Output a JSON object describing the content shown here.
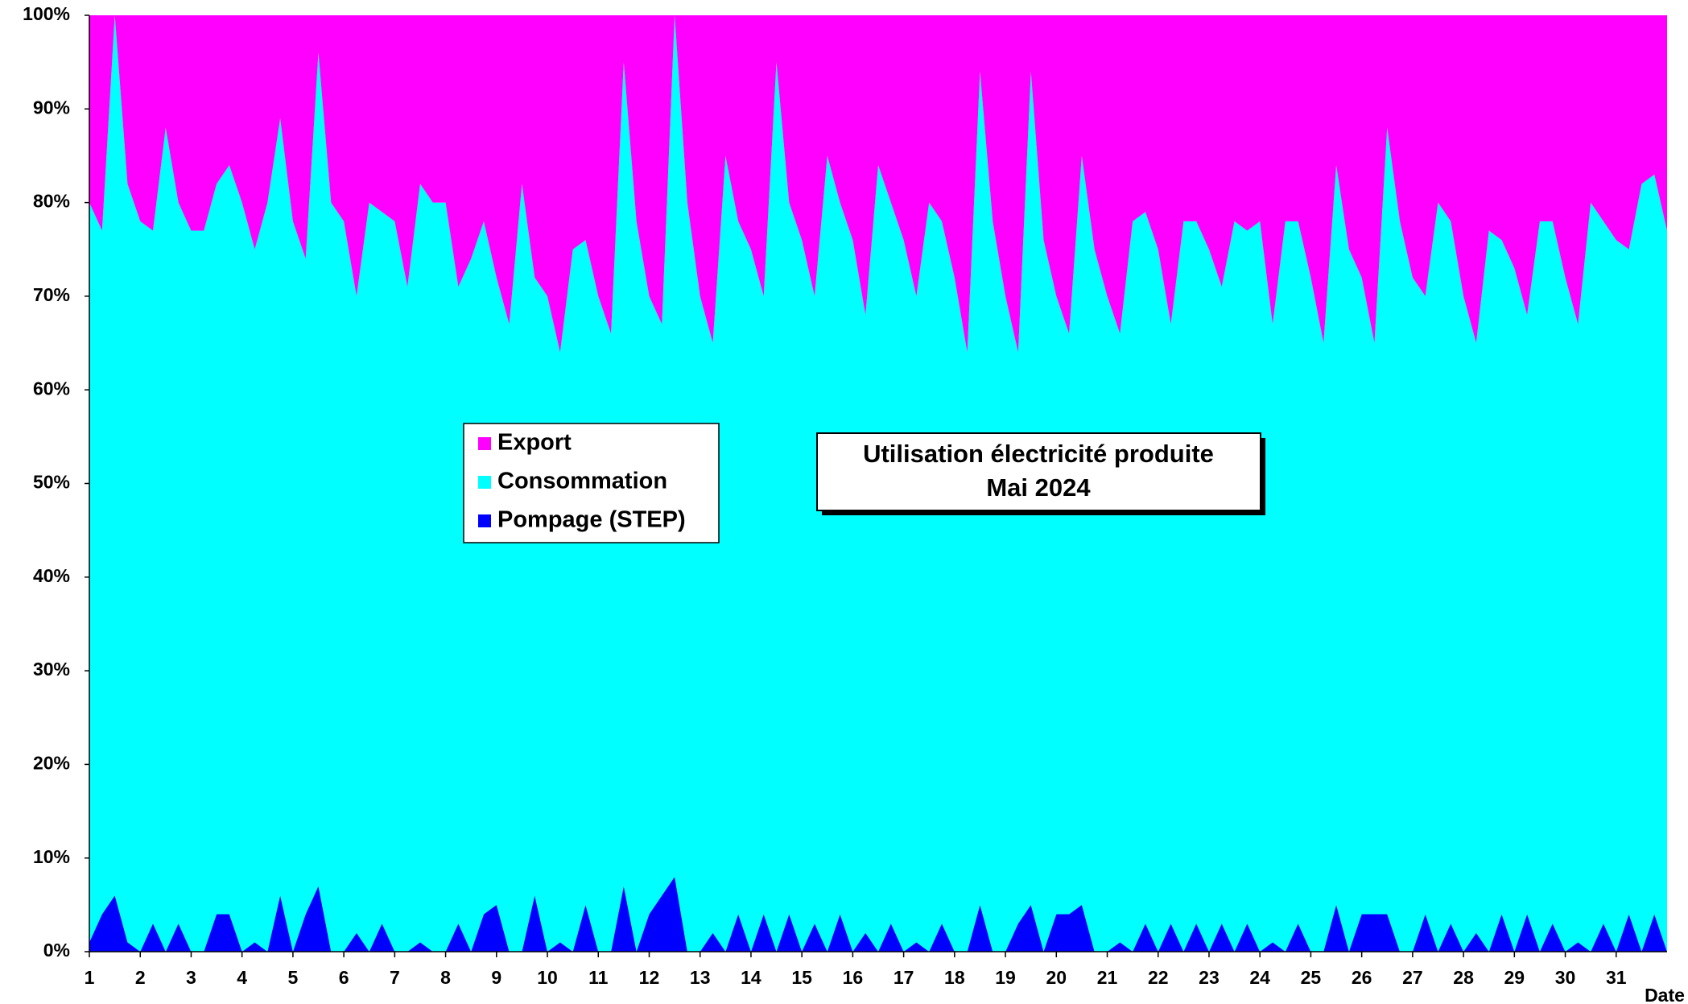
{
  "chart_data": {
    "type": "stacked_area_100",
    "title": "Utilisation électricité produite",
    "subtitle": "Mai 2024",
    "x_label": "Date",
    "x": [
      1,
      1.25,
      1.5,
      1.75,
      2,
      2.25,
      2.5,
      2.75,
      3,
      3.25,
      3.5,
      3.75,
      4,
      4.25,
      4.5,
      4.75,
      5,
      5.25,
      5.5,
      5.75,
      6,
      6.25,
      6.5,
      6.75,
      7,
      7.25,
      7.5,
      7.75,
      8,
      8.25,
      8.5,
      8.75,
      9,
      9.25,
      9.5,
      9.75,
      10,
      10.25,
      10.5,
      10.75,
      11,
      11.25,
      11.5,
      11.75,
      12,
      12.25,
      12.5,
      12.75,
      13,
      13.25,
      13.5,
      13.75,
      14,
      14.25,
      14.5,
      14.75,
      15,
      15.25,
      15.5,
      15.75,
      16,
      16.25,
      16.5,
      16.75,
      17,
      17.25,
      17.5,
      17.75,
      18,
      18.25,
      18.5,
      18.75,
      19,
      19.25,
      19.5,
      19.75,
      20,
      20.25,
      20.5,
      20.75,
      21,
      21.25,
      21.5,
      21.75,
      22,
      22.25,
      22.5,
      22.75,
      23,
      23.25,
      23.5,
      23.75,
      24,
      24.25,
      24.5,
      24.75,
      25,
      25.25,
      25.5,
      25.75,
      26,
      26.25,
      26.5,
      26.75,
      27,
      27.25,
      27.5,
      27.75,
      28,
      28.25,
      28.5,
      28.75,
      29,
      29.25,
      29.5,
      29.75,
      30,
      30.25,
      30.5,
      30.75,
      31,
      31.25,
      31.5,
      31.75,
      32
    ],
    "series": [
      {
        "name": "Pompage (STEP)",
        "color": "#0000ff",
        "values": [
          1,
          4,
          6,
          1,
          0,
          3,
          0,
          3,
          0,
          0,
          4,
          4,
          0,
          1,
          0,
          6,
          0,
          4,
          7,
          0,
          0,
          2,
          0,
          3,
          0,
          0,
          1,
          0,
          0,
          3,
          0,
          4,
          5,
          0,
          0,
          6,
          0,
          1,
          0,
          5,
          0,
          0,
          7,
          0,
          4,
          6,
          8,
          0,
          0,
          2,
          0,
          4,
          0,
          4,
          0,
          4,
          0,
          3,
          0,
          4,
          0,
          2,
          0,
          3,
          0,
          1,
          0,
          3,
          0,
          0,
          5,
          0,
          0,
          3,
          5,
          0,
          4,
          4,
          5,
          0,
          0,
          1,
          0,
          3,
          0,
          3,
          0,
          3,
          0,
          3,
          0,
          3,
          0,
          1,
          0,
          3,
          0,
          0,
          5,
          0,
          4,
          4,
          4,
          0,
          0,
          4,
          0,
          3,
          0,
          2,
          0,
          4,
          0,
          4,
          0,
          3,
          0,
          1,
          0,
          3,
          0,
          4,
          0,
          4,
          0
        ]
      },
      {
        "name": "Consommation",
        "color": "#00ffff",
        "values": [
          79,
          73,
          94,
          81,
          78,
          74,
          88,
          77,
          77,
          77,
          78,
          80,
          80,
          74,
          80,
          83,
          78,
          70,
          89,
          80,
          78,
          68,
          80,
          76,
          78,
          71,
          81,
          80,
          80,
          68,
          74,
          74,
          67,
          67,
          82,
          66,
          70,
          63,
          75,
          71,
          70,
          66,
          88,
          78,
          66,
          61,
          92,
          80,
          70,
          63,
          85,
          74,
          75,
          66,
          95,
          76,
          76,
          67,
          85,
          76,
          76,
          66,
          84,
          77,
          76,
          69,
          80,
          75,
          72,
          64,
          89,
          78,
          70,
          61,
          89,
          76,
          66,
          62,
          80,
          75,
          70,
          65,
          78,
          76,
          75,
          64,
          78,
          75,
          75,
          68,
          78,
          74,
          78,
          66,
          78,
          75,
          72,
          65,
          79,
          75,
          68,
          61,
          84,
          78,
          72,
          66,
          80,
          75,
          70,
          63,
          77,
          72,
          73,
          64,
          78,
          75,
          72,
          66,
          80,
          75,
          76,
          71,
          82,
          79,
          77
        ]
      },
      {
        "name": "Export",
        "color": "#ff00ff",
        "values": [
          20,
          23,
          0,
          18,
          22,
          23,
          12,
          20,
          23,
          23,
          18,
          16,
          20,
          25,
          20,
          11,
          22,
          26,
          4,
          20,
          22,
          30,
          20,
          21,
          22,
          29,
          18,
          20,
          20,
          29,
          26,
          22,
          28,
          33,
          18,
          28,
          30,
          36,
          25,
          24,
          30,
          34,
          5,
          22,
          30,
          33,
          0,
          20,
          30,
          35,
          15,
          22,
          25,
          30,
          5,
          20,
          24,
          30,
          15,
          20,
          24,
          32,
          16,
          20,
          24,
          30,
          20,
          22,
          28,
          36,
          6,
          22,
          30,
          36,
          6,
          24,
          30,
          34,
          15,
          25,
          30,
          34,
          22,
          21,
          25,
          33,
          22,
          22,
          25,
          29,
          22,
          23,
          22,
          33,
          22,
          22,
          28,
          35,
          16,
          25,
          28,
          35,
          12,
          22,
          28,
          30,
          20,
          22,
          30,
          35,
          23,
          24,
          27,
          32,
          22,
          22,
          28,
          33,
          20,
          22,
          24,
          25,
          18,
          17,
          23
        ]
      }
    ],
    "xlim": [
      1,
      32
    ],
    "xticks": [
      1,
      2,
      3,
      4,
      5,
      6,
      7,
      8,
      9,
      10,
      11,
      12,
      13,
      14,
      15,
      16,
      17,
      18,
      19,
      20,
      21,
      22,
      23,
      24,
      25,
      26,
      27,
      28,
      29,
      30,
      31
    ],
    "ylim": [
      0,
      100
    ],
    "yticks": [
      {
        "value": 0,
        "label": "0%"
      },
      {
        "value": 10,
        "label": "10%"
      },
      {
        "value": 20,
        "label": "20%"
      },
      {
        "value": 30,
        "label": "30%"
      },
      {
        "value": 40,
        "label": "40%"
      },
      {
        "value": 50,
        "label": "50%"
      },
      {
        "value": 60,
        "label": "60%"
      },
      {
        "value": 70,
        "label": "70%"
      },
      {
        "value": 80,
        "label": "80%"
      },
      {
        "value": 90,
        "label": "90%"
      },
      {
        "value": 100,
        "label": "100%"
      }
    ]
  }
}
